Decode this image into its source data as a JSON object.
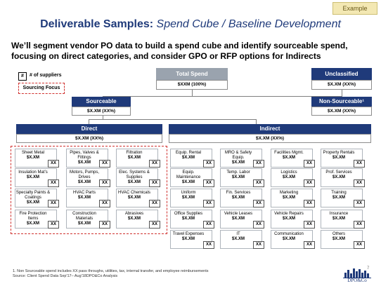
{
  "tag": "Example",
  "title": {
    "bold": "Deliverable Samples:",
    "italic": "Spend Cube / Baseline Development"
  },
  "subtitle": "We’ll segment vendor PO data to build a spend cube and identify sourceable spend, focusing on direct categories, and consider GPO or RFP options for Indirects",
  "legend": {
    "hash": "#",
    "suppliers": "# of suppliers",
    "focus": "Sourcing Focus"
  },
  "total": {
    "label": "Total Spend",
    "value": "$XXM (100%)"
  },
  "unclassified": {
    "label": "Unclassified",
    "value": "$X.XM (XX%)"
  },
  "sourceable": {
    "label": "Sourceable",
    "value": "$X.XM (XX%)"
  },
  "nonsourceable": {
    "label": "Non-Sourceable¹",
    "value": "$X.XM (XX%)"
  },
  "direct": {
    "label": "Direct",
    "value": "$X.XM (XX%)"
  },
  "indirect": {
    "label": "Indirect",
    "value": "$X.XM (XX%)"
  },
  "direct_cats": [
    {
      "name": "Sheet Metal",
      "value": "$X.XM",
      "xx": "XX"
    },
    {
      "name": "Pipes, Valves & Fittings",
      "value": "$X.XM",
      "xx": "XX"
    },
    {
      "name": "Filtration",
      "value": "$X.XM",
      "xx": "XX"
    },
    {
      "name": "Insulation Mat’s",
      "value": "$X.XM",
      "xx": "XX"
    },
    {
      "name": "Motors, Pumps, Drives",
      "value": "$X.XM",
      "xx": "XX"
    },
    {
      "name": "Elec. Systems & Supplies",
      "value": "$X.XM",
      "xx": "XX"
    },
    {
      "name": "Specialty Paints & Coatings",
      "value": "$X.XM",
      "xx": "XX"
    },
    {
      "name": "HVAC Parts",
      "value": "$X.XM",
      "xx": "XX"
    },
    {
      "name": "HVAC Chemicals",
      "value": "$X.XM",
      "xx": "XX"
    },
    {
      "name": "Fire Protection Items",
      "value": "$X.XM",
      "xx": "XX"
    },
    {
      "name": "Construction Materials",
      "value": "$X.XM",
      "xx": "XX"
    },
    {
      "name": "Abrasives",
      "value": "$X.XM",
      "xx": "XX"
    }
  ],
  "indirect_cats": [
    {
      "name": "Equip. Rental",
      "value": "$X.XM",
      "xx": "XX"
    },
    {
      "name": "MRO & Safety Equip.",
      "value": "$X.XM",
      "xx": "XX"
    },
    {
      "name": "Facilities Mgmt.",
      "value": "$X.XM",
      "xx": "XX"
    },
    {
      "name": "Property Rentals",
      "value": "$X.XM",
      "xx": "XX"
    },
    {
      "name": "Equip. Maintenance",
      "value": "$X.XM",
      "xx": "XX"
    },
    {
      "name": "Temp. Labor",
      "value": "$X.XM",
      "xx": "XX"
    },
    {
      "name": "Logistics",
      "value": "$X.XM",
      "xx": "XX"
    },
    {
      "name": "Prof. Services",
      "value": "$X.XM",
      "xx": "XX"
    },
    {
      "name": "Uniform",
      "value": "$X.XM",
      "xx": "XX"
    },
    {
      "name": "Fin. Services",
      "value": "$X.XM",
      "xx": "XX"
    },
    {
      "name": "Marketing",
      "value": "$X.XM",
      "xx": "XX"
    },
    {
      "name": "Training",
      "value": "$X.XM",
      "xx": "XX"
    },
    {
      "name": "Office Supplies",
      "value": "$X.XM",
      "xx": "XX"
    },
    {
      "name": "Vehicle Leases",
      "value": "$X.XM",
      "xx": "XX"
    },
    {
      "name": "Vehicle Repairs",
      "value": "$X.XM",
      "xx": "XX"
    },
    {
      "name": "Insurance",
      "value": "$X.XM",
      "xx": "XX"
    },
    {
      "name": "Travel Expenses",
      "value": "$X.XM",
      "xx": "XX"
    },
    {
      "name": "IT",
      "value": "$X.XM",
      "xx": "XX"
    },
    {
      "name": "Communication",
      "value": "$X.XM",
      "xx": "XX"
    },
    {
      "name": "Others",
      "value": "$X.XM",
      "xx": "XX"
    }
  ],
  "footnote1": "1. Non Sourceable spend includes XX pass throughs, utilities, tax, internal transfer, and employee reimbursements",
  "footnote2": "Source: Client Spend Data Sep'17– Aug'18DPO&Co Analysis",
  "page_number": "7",
  "logo_text": "DPO&Co",
  "colors": {
    "navy": "#1f3a7a",
    "grey": "#9aa3ae",
    "focus_red": "#d0302e"
  }
}
